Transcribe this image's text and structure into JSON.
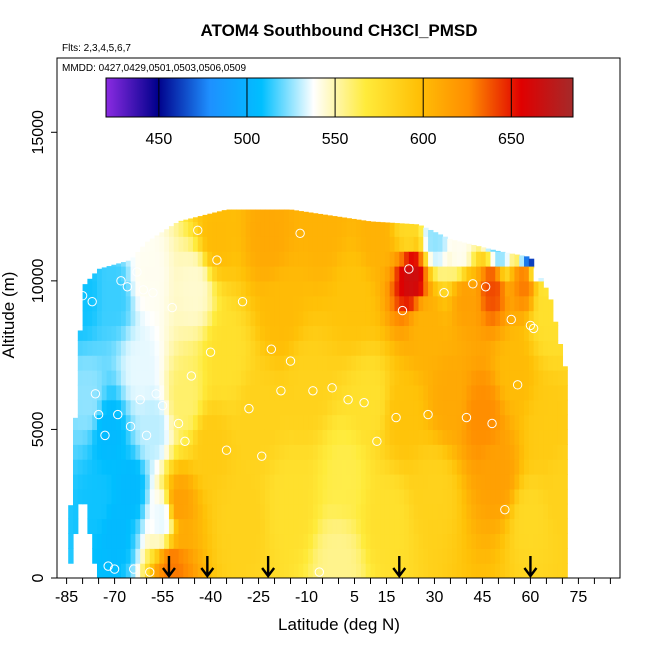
{
  "chart_data": {
    "type": "heatmap",
    "title": "ATOM4 Southbound CH3Cl_PMSD",
    "subtitle_flights": "Flts: 2,3,4,5,6,7",
    "subtitle_dates": "MMDD: 0427,0429,0501,0503,0506,0509",
    "xlabel": "Latitude (deg N)",
    "ylabel": "Altitude (m)",
    "xlim": [
      -88,
      88
    ],
    "ylim": [
      0,
      17500
    ],
    "x_ticks": [
      -85,
      -70,
      -55,
      -40,
      -25,
      -10,
      5,
      15,
      30,
      45,
      60,
      75
    ],
    "x_minor_step": 5,
    "y_ticks": [
      0,
      5000,
      10000,
      15000
    ],
    "colorbar": {
      "range": [
        420,
        685
      ],
      "ticks": [
        450,
        500,
        550,
        600,
        650
      ],
      "colors": [
        "#8b2be2",
        "#00008b",
        "#1e90ff",
        "#00bfff",
        "#ffffff",
        "#ffeb3b",
        "#ffc107",
        "#ff8c00",
        "#e00000",
        "#a52a2a"
      ]
    },
    "arrows_lat": [
      -53,
      -41,
      -22,
      19,
      60
    ],
    "column_extents": [
      {
        "lat": -85,
        "bottom": 0,
        "top": 0
      },
      {
        "lat": -80,
        "bottom": 3000,
        "top": 9800
      },
      {
        "lat": -75,
        "bottom": 0,
        "top": 10400
      },
      {
        "lat": -65,
        "bottom": 0,
        "top": 10700
      },
      {
        "lat": -60,
        "bottom": 0,
        "top": 11300
      },
      {
        "lat": -50,
        "bottom": 0,
        "top": 12000
      },
      {
        "lat": -35,
        "bottom": 0,
        "top": 12400
      },
      {
        "lat": -15,
        "bottom": 0,
        "top": 12400
      },
      {
        "lat": 10,
        "bottom": 0,
        "top": 12000
      },
      {
        "lat": 25,
        "bottom": 0,
        "top": 11900
      },
      {
        "lat": 35,
        "bottom": 0,
        "top": 11400
      },
      {
        "lat": 50,
        "bottom": 0,
        "top": 11000
      },
      {
        "lat": 60,
        "bottom": 0,
        "top": 10800
      },
      {
        "lat": 66,
        "bottom": 0,
        "top": 9500
      },
      {
        "lat": 72,
        "bottom": 0,
        "top": 6500
      }
    ],
    "anchors": [
      {
        "lat": -80,
        "alt": 9500,
        "value": 510
      },
      {
        "lat": -78,
        "alt": 6000,
        "value": 525
      },
      {
        "lat": -75,
        "alt": 2500,
        "value": 510
      },
      {
        "lat": -72,
        "alt": 5000,
        "value": 505
      },
      {
        "lat": -70,
        "alt": 9500,
        "value": 515
      },
      {
        "lat": -70,
        "alt": 1500,
        "value": 505
      },
      {
        "lat": -65,
        "alt": 3000,
        "value": 505
      },
      {
        "lat": -62,
        "alt": 7000,
        "value": 535
      },
      {
        "lat": -60,
        "alt": 10200,
        "value": 540
      },
      {
        "lat": -58,
        "alt": 5000,
        "value": 530
      },
      {
        "lat": -55,
        "alt": 2000,
        "value": 535
      },
      {
        "lat": -52,
        "alt": 300,
        "value": 630
      },
      {
        "lat": -50,
        "alt": 2500,
        "value": 615
      },
      {
        "lat": -48,
        "alt": 6000,
        "value": 560
      },
      {
        "lat": -45,
        "alt": 9800,
        "value": 545
      },
      {
        "lat": -40,
        "alt": 4500,
        "value": 590
      },
      {
        "lat": -38,
        "alt": 11500,
        "value": 600
      },
      {
        "lat": -35,
        "alt": 7500,
        "value": 575
      },
      {
        "lat": -30,
        "alt": 2000,
        "value": 585
      },
      {
        "lat": -25,
        "alt": 5500,
        "value": 585
      },
      {
        "lat": -22,
        "alt": 11500,
        "value": 610
      },
      {
        "lat": -18,
        "alt": 9000,
        "value": 600
      },
      {
        "lat": -15,
        "alt": 2500,
        "value": 575
      },
      {
        "lat": -10,
        "alt": 6500,
        "value": 585
      },
      {
        "lat": -5,
        "alt": 11800,
        "value": 605
      },
      {
        "lat": 0,
        "alt": 500,
        "value": 555
      },
      {
        "lat": 2,
        "alt": 3500,
        "value": 565
      },
      {
        "lat": 5,
        "alt": 9500,
        "value": 595
      },
      {
        "lat": 10,
        "alt": 6000,
        "value": 575
      },
      {
        "lat": 12,
        "alt": 11500,
        "value": 605
      },
      {
        "lat": 15,
        "alt": 2000,
        "value": 575
      },
      {
        "lat": 20,
        "alt": 5500,
        "value": 595
      },
      {
        "lat": 22,
        "alt": 11700,
        "value": 580
      },
      {
        "lat": 23,
        "alt": 10200,
        "value": 665
      },
      {
        "lat": 27,
        "alt": 8500,
        "value": 605
      },
      {
        "lat": 30,
        "alt": 11500,
        "value": 525
      },
      {
        "lat": 30,
        "alt": 3000,
        "value": 585
      },
      {
        "lat": 35,
        "alt": 6000,
        "value": 610
      },
      {
        "lat": 38,
        "alt": 11000,
        "value": 540
      },
      {
        "lat": 40,
        "alt": 9500,
        "value": 615
      },
      {
        "lat": 45,
        "alt": 5500,
        "value": 625
      },
      {
        "lat": 48,
        "alt": 9800,
        "value": 640
      },
      {
        "lat": 50,
        "alt": 11200,
        "value": 520
      },
      {
        "lat": 50,
        "alt": 3500,
        "value": 615
      },
      {
        "lat": 55,
        "alt": 7000,
        "value": 600
      },
      {
        "lat": 58,
        "alt": 10000,
        "value": 630
      },
      {
        "lat": 60,
        "alt": 11000,
        "value": 460
      },
      {
        "lat": 60,
        "alt": 2000,
        "value": 580
      },
      {
        "lat": 65,
        "alt": 5000,
        "value": 590
      },
      {
        "lat": 65,
        "alt": 9000,
        "value": 575
      },
      {
        "lat": 70,
        "alt": 3000,
        "value": 585
      }
    ],
    "sample_points": [
      [
        -84,
        9500
      ],
      [
        -80,
        9500
      ],
      [
        -77,
        9300
      ],
      [
        -76,
        6200
      ],
      [
        -75,
        5500
      ],
      [
        -73,
        4800
      ],
      [
        -72,
        400
      ],
      [
        -70,
        300
      ],
      [
        -69,
        5500
      ],
      [
        -68,
        10000
      ],
      [
        -66,
        9800
      ],
      [
        -65,
        5100
      ],
      [
        -64,
        300
      ],
      [
        -63,
        10300
      ],
      [
        -62,
        6000
      ],
      [
        -61,
        9700
      ],
      [
        -60,
        4800
      ],
      [
        -59,
        200
      ],
      [
        -58,
        9600
      ],
      [
        -57,
        6200
      ],
      [
        -55,
        5800
      ],
      [
        -52,
        9100
      ],
      [
        -50,
        5200
      ],
      [
        -48,
        4600
      ],
      [
        -46,
        6800
      ],
      [
        -44,
        11700
      ],
      [
        -40,
        7600
      ],
      [
        -38,
        10700
      ],
      [
        -35,
        4300
      ],
      [
        -30,
        9300
      ],
      [
        -28,
        5700
      ],
      [
        -24,
        4100
      ],
      [
        -21,
        7700
      ],
      [
        -18,
        6300
      ],
      [
        -15,
        7300
      ],
      [
        -12,
        11600
      ],
      [
        -8,
        6300
      ],
      [
        -6,
        200
      ],
      [
        -2,
        6400
      ],
      [
        3,
        6000
      ],
      [
        8,
        5900
      ],
      [
        12,
        4600
      ],
      [
        18,
        5400
      ],
      [
        20,
        9000
      ],
      [
        22,
        10400
      ],
      [
        28,
        5500
      ],
      [
        33,
        9600
      ],
      [
        40,
        5400
      ],
      [
        42,
        9900
      ],
      [
        46,
        9800
      ],
      [
        48,
        5200
      ],
      [
        52,
        2300
      ],
      [
        54,
        8700
      ],
      [
        56,
        6500
      ],
      [
        60,
        8500
      ],
      [
        61,
        8400
      ]
    ]
  }
}
